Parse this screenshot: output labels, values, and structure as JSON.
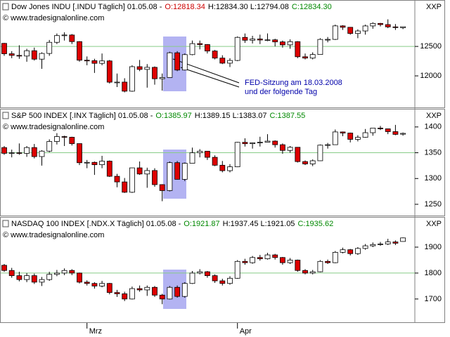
{
  "chart_data": [
    {
      "type": "candlestick",
      "header": [
        {
          "text": "Dow Jones INDU [.INDU  Täglich] 01.05.08 -",
          "color": "#000000"
        },
        {
          "text": "O:12818.34",
          "color": "#cc0000"
        },
        {
          "text": "H:12834.30 L:12794.08",
          "color": "#000000"
        },
        {
          "text": "C:12834.30",
          "color": "#008800"
        }
      ],
      "watermark": "© www.tradesignalonline.com",
      "axis_label": "XXP",
      "annotation": [
        "FED-Sitzung am 18.03.2008",
        "und der folgende Tag"
      ],
      "annotation_color": "#0000aa",
      "up_color": "#ffffff",
      "down_color": "#dd0000",
      "hline": 12500,
      "hline_color": "#88cc88",
      "ylim": [
        11500,
        13050
      ],
      "yticks": [
        {
          "value": 12000,
          "label": "12000"
        },
        {
          "value": 12500,
          "label": "12500"
        }
      ],
      "open": [
        12552,
        12376,
        12348,
        12337,
        12427,
        12284,
        12381,
        12570,
        12684,
        12694,
        12582,
        12266,
        12258,
        12213,
        12254,
        11893,
        11894,
        11740,
        12156,
        12110,
        12145,
        11951,
        11972,
        12392,
        12099,
        12361,
        12548,
        12532,
        12422,
        12302,
        12216,
        12262,
        12654,
        12605,
        12626,
        12609,
        12612,
        12577,
        12527,
        12581,
        12325,
        12302,
        12363,
        12619,
        12620,
        12849,
        12825,
        12720,
        12763,
        12848,
        12891,
        12871,
        12832,
        12818.34
      ],
      "high": [
        12560,
        12420,
        12520,
        12460,
        12480,
        12400,
        12610,
        12720,
        12740,
        12710,
        12590,
        12330,
        12290,
        12380,
        12270,
        12040,
        11960,
        12180,
        12270,
        12200,
        12160,
        12040,
        12410,
        12420,
        12380,
        12600,
        12600,
        12540,
        12440,
        12350,
        12300,
        12670,
        12720,
        12680,
        12700,
        12720,
        12630,
        12600,
        12620,
        12590,
        12380,
        12400,
        12640,
        12660,
        12870,
        12860,
        12830,
        12790,
        12870,
        12910,
        12900,
        12960,
        12880,
        12834.3
      ],
      "low": [
        12340,
        12300,
        12290,
        12240,
        12260,
        12120,
        12340,
        12540,
        12600,
        12540,
        12240,
        12180,
        12050,
        12180,
        11870,
        11810,
        11720,
        11730,
        12080,
        11800,
        11850,
        11750,
        11970,
        12080,
        12090,
        12350,
        12450,
        12380,
        12280,
        12200,
        12150,
        12250,
        12560,
        12550,
        12540,
        12590,
        12500,
        12480,
        12460,
        12300,
        12280,
        12280,
        12360,
        12570,
        12610,
        12780,
        12700,
        12640,
        12700,
        12800,
        12840,
        12810,
        12780,
        12794.08
      ],
      "close": [
        12376,
        12348,
        12337,
        12427,
        12284,
        12381,
        12570,
        12684,
        12694,
        12582,
        12266,
        12258,
        12213,
        12254,
        11893,
        11894,
        11740,
        12156,
        12110,
        12145,
        11951,
        11972,
        12392,
        12099,
        12361,
        12548,
        12532,
        12422,
        12302,
        12216,
        12262,
        12654,
        12605,
        12626,
        12609,
        12612,
        12577,
        12527,
        12581,
        12325,
        12302,
        12363,
        12619,
        12620,
        12849,
        12825,
        12720,
        12763,
        12848,
        12891,
        12871,
        12832,
        12820,
        12834.3
      ]
    },
    {
      "type": "candlestick",
      "header": [
        {
          "text": "S&P 500 INDEX [.INX  Täglich] 01.05.08 -",
          "color": "#000000"
        },
        {
          "text": "O:1385.97",
          "color": "#008800"
        },
        {
          "text": "H:1389.15 L:1383.07",
          "color": "#000000"
        },
        {
          "text": "C:1387.55",
          "color": "#008800"
        }
      ],
      "watermark": "© www.tradesignalonline.com",
      "axis_label": "XXP",
      "up_color": "#ffffff",
      "down_color": "#dd0000",
      "hline": 1350,
      "hline_color": "#88cc88",
      "ylim": [
        1235,
        1412
      ],
      "yticks": [
        1250,
        1300,
        1350,
        1400
      ],
      "open": [
        1360,
        1348.86,
        1349.99,
        1348.78,
        1360.03,
        1342.53,
        1353.11,
        1371.8,
        1381.29,
        1380.02,
        1367.68,
        1330.63,
        1331.34,
        1326.75,
        1333.7,
        1304.34,
        1293.37,
        1273.37,
        1320.65,
        1308.77,
        1315.48,
        1288.14,
        1276.6,
        1330.74,
        1298.42,
        1329.51,
        1349.88,
        1352.99,
        1341.13,
        1325.76,
        1315.22,
        1322.7,
        1370.18,
        1367.53,
        1369.31,
        1370.4,
        1372.54,
        1365.54,
        1354.49,
        1360.55,
        1332.83,
        1328.32,
        1334.43,
        1364.71,
        1365.56,
        1390.33,
        1388.17,
        1375.94,
        1379.93,
        1388.82,
        1397.84,
        1396.37,
        1390.94,
        1385.97
      ],
      "high": [
        1363,
        1356,
        1368,
        1363,
        1367,
        1355,
        1376,
        1388,
        1383,
        1381,
        1368,
        1336,
        1333,
        1344,
        1335,
        1309,
        1301,
        1321,
        1333,
        1321,
        1320,
        1289,
        1333,
        1334,
        1331,
        1360,
        1357,
        1353,
        1345,
        1334,
        1328,
        1371,
        1378,
        1370,
        1381,
        1386,
        1374,
        1368,
        1363,
        1361,
        1335,
        1337,
        1366,
        1369,
        1395,
        1391,
        1389,
        1384,
        1396,
        1398,
        1402,
        1397,
        1404,
        1389.15
      ],
      "low": [
        1346,
        1341,
        1346,
        1342,
        1339,
        1325,
        1351,
        1366,
        1363,
        1364,
        1326,
        1320,
        1307,
        1320,
        1303,
        1283,
        1272,
        1272,
        1307,
        1282,
        1284,
        1256,
        1275,
        1298,
        1295,
        1329,
        1341,
        1336,
        1324,
        1312,
        1312,
        1322,
        1362,
        1358,
        1362,
        1370,
        1360,
        1348,
        1350,
        1331,
        1326,
        1324,
        1334,
        1358,
        1365,
        1382,
        1370,
        1372,
        1379,
        1383,
        1394,
        1386,
        1384,
        1383.07
      ],
      "close": [
        1348.86,
        1349.99,
        1348.78,
        1360.03,
        1342.53,
        1353.11,
        1371.8,
        1381.29,
        1380.02,
        1367.68,
        1330.63,
        1331.34,
        1326.75,
        1333.7,
        1304.34,
        1293.37,
        1273.37,
        1320.65,
        1308.77,
        1315.48,
        1288.14,
        1276.6,
        1330.74,
        1298.42,
        1329.51,
        1349.88,
        1352.99,
        1341.13,
        1325.76,
        1315.22,
        1322.7,
        1370.18,
        1367.53,
        1369.31,
        1370.4,
        1372.54,
        1365.54,
        1354.49,
        1360.55,
        1332.83,
        1328.32,
        1334.43,
        1364.71,
        1365.56,
        1390.33,
        1388.17,
        1375.94,
        1379.93,
        1388.82,
        1397.84,
        1396.37,
        1390.94,
        1385.59,
        1387.55
      ]
    },
    {
      "type": "candlestick",
      "header": [
        {
          "text": "NASDAQ 100 INDEX [.NDX.X  Täglich] 01.05.08 -",
          "color": "#000000"
        },
        {
          "text": "O:1921.87",
          "color": "#008800"
        },
        {
          "text": "H:1937.45 L:1921.05",
          "color": "#000000"
        },
        {
          "text": "C:1935.62",
          "color": "#008800"
        }
      ],
      "watermark": "© www.tradesignalonline.com",
      "axis_label": "XXP",
      "up_color": "#ffffff",
      "down_color": "#dd0000",
      "hline": 1800,
      "hline_color": "#88cc88",
      "ylim": [
        1613,
        1946
      ],
      "yticks": [
        1700,
        1800,
        1900
      ],
      "categories": [
        null,
        null,
        null,
        null,
        null,
        null,
        null,
        null,
        null,
        null,
        null,
        "Mrz",
        null,
        null,
        null,
        null,
        null,
        null,
        null,
        null,
        null,
        null,
        null,
        null,
        null,
        null,
        null,
        null,
        null,
        null,
        null,
        "Apr",
        null,
        null,
        null,
        null,
        null,
        null,
        null,
        null,
        null,
        null,
        null,
        null,
        null,
        null,
        null,
        null,
        null,
        null,
        null,
        null,
        null,
        null
      ],
      "open": [
        1830,
        1810,
        1790,
        1775,
        1790,
        1765,
        1775,
        1795,
        1800,
        1810,
        1800,
        1765,
        1760,
        1750,
        1760,
        1725,
        1720,
        1700,
        1740,
        1735,
        1745,
        1715,
        1700,
        1745,
        1710,
        1760,
        1800,
        1805,
        1790,
        1770,
        1760,
        1780,
        1845,
        1840,
        1860,
        1855,
        1870,
        1860,
        1840,
        1850,
        1810,
        1800,
        1805,
        1845,
        1840,
        1880,
        1890,
        1875,
        1895,
        1905,
        1910,
        1912,
        1920,
        1921.87
      ],
      "high": [
        1835,
        1820,
        1805,
        1800,
        1798,
        1785,
        1805,
        1812,
        1818,
        1815,
        1802,
        1772,
        1765,
        1770,
        1762,
        1735,
        1728,
        1748,
        1752,
        1752,
        1750,
        1720,
        1750,
        1752,
        1765,
        1808,
        1815,
        1808,
        1795,
        1778,
        1788,
        1850,
        1855,
        1866,
        1870,
        1878,
        1874,
        1862,
        1858,
        1852,
        1815,
        1812,
        1850,
        1852,
        1885,
        1898,
        1893,
        1900,
        1912,
        1918,
        1920,
        1932,
        1926,
        1937.45
      ],
      "low": [
        1805,
        1782,
        1768,
        1765,
        1758,
        1750,
        1770,
        1788,
        1792,
        1792,
        1760,
        1752,
        1740,
        1745,
        1718,
        1708,
        1692,
        1698,
        1728,
        1712,
        1708,
        1680,
        1698,
        1705,
        1705,
        1758,
        1795,
        1782,
        1762,
        1752,
        1755,
        1778,
        1832,
        1836,
        1848,
        1852,
        1852,
        1832,
        1835,
        1805,
        1795,
        1795,
        1803,
        1835,
        1838,
        1876,
        1868,
        1870,
        1890,
        1900,
        1905,
        1908,
        1908,
        1921.05
      ],
      "close": [
        1810,
        1790,
        1775,
        1790,
        1765,
        1775,
        1795,
        1800,
        1810,
        1800,
        1765,
        1760,
        1750,
        1760,
        1725,
        1720,
        1700,
        1740,
        1735,
        1745,
        1715,
        1700,
        1745,
        1710,
        1760,
        1800,
        1805,
        1790,
        1770,
        1760,
        1780,
        1845,
        1840,
        1860,
        1855,
        1870,
        1860,
        1840,
        1850,
        1810,
        1800,
        1805,
        1845,
        1840,
        1880,
        1890,
        1875,
        1895,
        1905,
        1910,
        1912,
        1920,
        1915,
        1935.62
      ]
    }
  ]
}
